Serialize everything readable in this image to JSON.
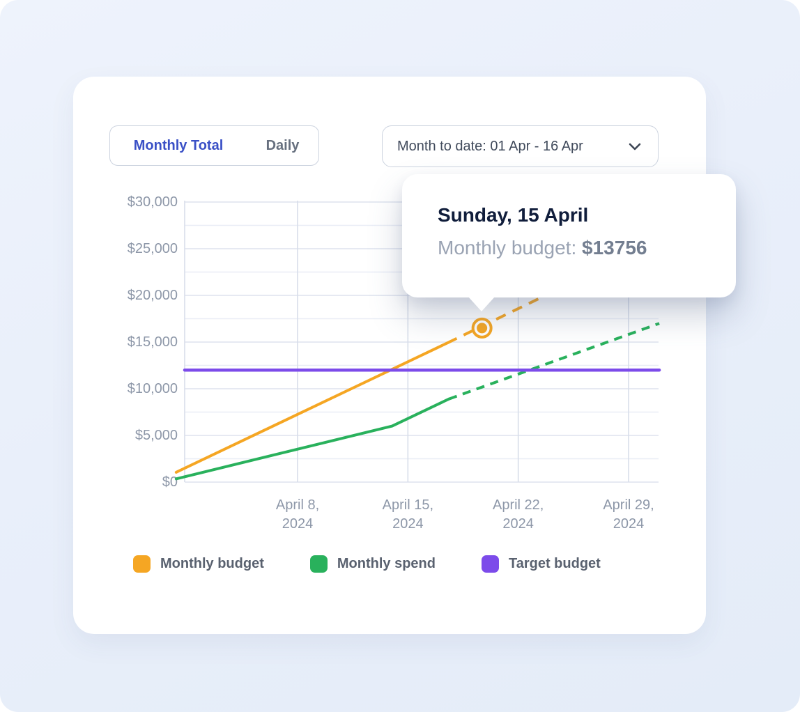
{
  "tabs": {
    "monthly_label": "Monthly Total",
    "daily_label": "Daily",
    "active": "Monthly Total"
  },
  "date_filter": {
    "value": "Month to date: 01 Apr - 16 Apr",
    "chevron_icon": "chevron-down"
  },
  "tooltip": {
    "title": "Sunday, 15 April",
    "series_label": "Monthly budget: ",
    "value": "$13756"
  },
  "colors": {
    "accent_blue": "#3a50c6",
    "monthly_budget": "#F5A623",
    "monthly_spend": "#29B15C",
    "target_budget": "#7C4BEA",
    "tick_text": "#8d97a8",
    "grid_major": "#dde2ee",
    "grid_minor": "#e9edf6",
    "grid_vertical": "#d8deea"
  },
  "chart_data": {
    "type": "line",
    "title": "",
    "xlabel": "",
    "ylabel": "",
    "x": {
      "unit": "day of April 2024",
      "range": [
        1,
        31
      ],
      "ticks": [
        {
          "day": 8,
          "line1": "April 8,",
          "line2": "2024"
        },
        {
          "day": 15,
          "line1": "April 15,",
          "line2": "2024"
        },
        {
          "day": 22,
          "line1": "April 22,",
          "line2": "2024"
        },
        {
          "day": 29,
          "line1": "April 29,",
          "line2": "2024"
        }
      ]
    },
    "y": {
      "range": [
        0,
        30000
      ],
      "gridline_step": 2500,
      "ticks": [
        {
          "value": 0,
          "label": "$0"
        },
        {
          "value": 5000,
          "label": "$5,000"
        },
        {
          "value": 10000,
          "label": "$10,000"
        },
        {
          "value": 15000,
          "label": "$15,000"
        },
        {
          "value": 20000,
          "label": "$20,000"
        },
        {
          "value": 25000,
          "label": "$25,000"
        },
        {
          "value": 30000,
          "label": "$30,000"
        }
      ]
    },
    "series": [
      {
        "name": "Monthly budget",
        "color": "#F5A623",
        "actual": [
          [
            0.3,
            1050
          ],
          [
            17.5,
            14900
          ]
        ],
        "projected": [
          [
            17.5,
            14900
          ],
          [
            30.95,
            25900
          ]
        ]
      },
      {
        "name": "Monthly spend",
        "color": "#29B15C",
        "actual": [
          [
            0.3,
            350
          ],
          [
            14,
            6000
          ],
          [
            17.6,
            8900
          ]
        ],
        "projected": [
          [
            17.6,
            8900
          ],
          [
            30.95,
            17000
          ]
        ]
      },
      {
        "name": "Target budget",
        "color": "#7C4BEA",
        "actual": [
          [
            0.84,
            12000
          ],
          [
            30.95,
            12000
          ]
        ],
        "projected": []
      }
    ],
    "highlight": {
      "series": "Monthly budget",
      "day": 19.7,
      "value": 16500
    },
    "legend_position": "bottom",
    "grid": true
  }
}
